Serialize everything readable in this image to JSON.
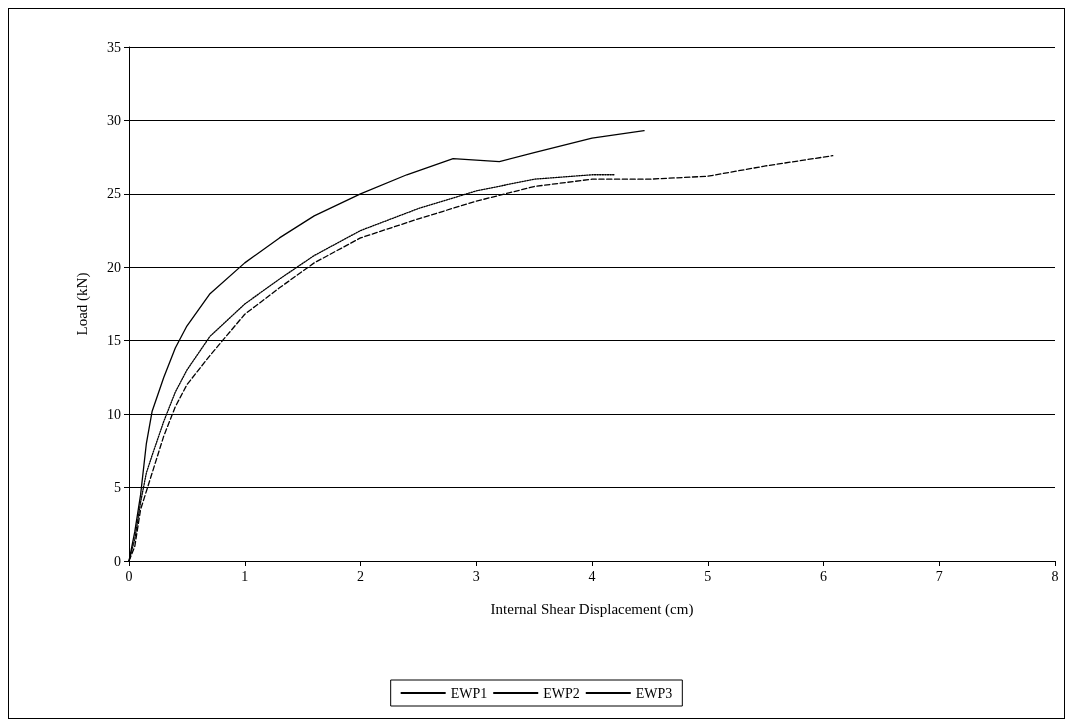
{
  "chart_data": {
    "type": "line",
    "xlabel": "Internal Shear Displacement (cm)",
    "ylabel": "Load (kN)",
    "xlim": [
      0,
      8
    ],
    "xticks": [
      0,
      1,
      2,
      3,
      4,
      5,
      6,
      7,
      8
    ],
    "ylim": [
      0,
      35
    ],
    "yticks": [
      0,
      5,
      10,
      15,
      20,
      25,
      30,
      35
    ],
    "grid": "y",
    "legend": "bottom",
    "marker": "none",
    "series": [
      {
        "name": "EWP1",
        "color": "#000000",
        "line_style": "solid",
        "x": [
          0,
          0.05,
          0.1,
          0.15,
          0.2,
          0.3,
          0.4,
          0.5,
          0.7,
          1,
          1.3,
          1.6,
          2,
          2.4,
          2.8,
          3,
          3.2,
          3.5,
          4,
          4.45
        ],
        "values": [
          0,
          2,
          4.5,
          8,
          10.2,
          12.5,
          14.5,
          16,
          18.2,
          20.3,
          22,
          23.5,
          25,
          26.3,
          27.4,
          27.3,
          27.2,
          27.8,
          28.8,
          29.3
        ]
      },
      {
        "name": "EWP2",
        "color": "#000000",
        "line_style": "dotted",
        "x": [
          0,
          0.05,
          0.1,
          0.15,
          0.2,
          0.3,
          0.4,
          0.5,
          0.7,
          1,
          1.3,
          1.6,
          2,
          2.5,
          3,
          3.5,
          4,
          4.2
        ],
        "values": [
          0,
          1.5,
          4,
          6,
          7.2,
          9.5,
          11.5,
          13,
          15.3,
          17.5,
          19.2,
          20.8,
          22.5,
          24,
          25.2,
          26,
          26.3,
          26.3
        ]
      },
      {
        "name": "EWP3",
        "color": "#000000",
        "line_style": "dashed",
        "x": [
          0,
          0.05,
          0.1,
          0.2,
          0.3,
          0.4,
          0.5,
          0.7,
          1,
          1.3,
          1.6,
          2,
          2.5,
          3,
          3.5,
          4,
          4.5,
          5,
          5.5,
          6.08
        ],
        "values": [
          0,
          1,
          3.5,
          6,
          8.5,
          10.5,
          12,
          14,
          16.8,
          18.6,
          20.3,
          22,
          23.3,
          24.5,
          25.5,
          26,
          26,
          26.2,
          26.9,
          27.6
        ]
      }
    ]
  }
}
